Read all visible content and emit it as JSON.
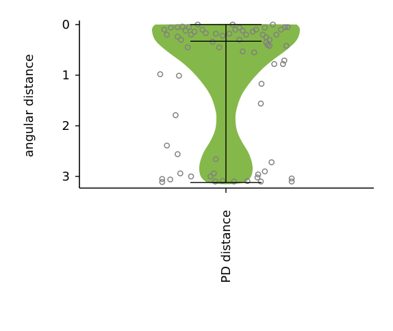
{
  "chart_data": {
    "type": "violin",
    "ylabel": "angular distance",
    "categories": [
      "PD distance"
    ],
    "y_inverted": true,
    "ylim": [
      3.23,
      -0.08
    ],
    "yticks": [
      0,
      1,
      2,
      3
    ],
    "ytick_labels": [
      "0",
      "1",
      "2",
      "3"
    ],
    "violin_color": "#85b84a",
    "point_color": "#808080",
    "error_color": "#000000",
    "summary": {
      "min": 0.0,
      "median": 0.33,
      "max": 3.12
    },
    "density_profile": [
      [
        0.0,
        0.96
      ],
      [
        0.1,
        1.0
      ],
      [
        0.3,
        0.96
      ],
      [
        0.5,
        0.82
      ],
      [
        0.8,
        0.55
      ],
      [
        1.1,
        0.35
      ],
      [
        1.4,
        0.21
      ],
      [
        1.7,
        0.14
      ],
      [
        1.9,
        0.13
      ],
      [
        2.1,
        0.15
      ],
      [
        2.3,
        0.21
      ],
      [
        2.55,
        0.31
      ],
      [
        2.8,
        0.36
      ],
      [
        3.0,
        0.34
      ],
      [
        3.12,
        0.26
      ]
    ],
    "points": [
      {
        "x": -0.92,
        "y": 0.1
      },
      {
        "x": -0.88,
        "y": 0.2
      },
      {
        "x": -0.82,
        "y": 0.06
      },
      {
        "x": -0.72,
        "y": 0.05
      },
      {
        "x": -0.72,
        "y": 0.24
      },
      {
        "x": -0.67,
        "y": 0.3
      },
      {
        "x": -0.65,
        "y": 0.04
      },
      {
        "x": -0.6,
        "y": 0.12
      },
      {
        "x": -0.57,
        "y": 0.45
      },
      {
        "x": -0.55,
        "y": 0.05
      },
      {
        "x": -0.52,
        "y": 0.2
      },
      {
        "x": -0.47,
        "y": 0.14
      },
      {
        "x": -0.42,
        "y": 0.0
      },
      {
        "x": -0.35,
        "y": 0.1
      },
      {
        "x": -0.3,
        "y": 0.17
      },
      {
        "x": -0.2,
        "y": 0.34
      },
      {
        "x": -0.15,
        "y": 0.18
      },
      {
        "x": -0.1,
        "y": 0.45
      },
      {
        "x": -0.05,
        "y": 0.22
      },
      {
        "x": 0.05,
        "y": 0.18
      },
      {
        "x": 0.1,
        "y": 0.0
      },
      {
        "x": 0.14,
        "y": 0.1
      },
      {
        "x": 0.2,
        "y": 0.06
      },
      {
        "x": 0.2,
        "y": 0.3
      },
      {
        "x": 0.25,
        "y": 0.12
      },
      {
        "x": 0.3,
        "y": 0.2
      },
      {
        "x": 0.25,
        "y": 0.53
      },
      {
        "x": 0.4,
        "y": 0.14
      },
      {
        "x": 0.42,
        "y": 0.55
      },
      {
        "x": 0.45,
        "y": 0.1
      },
      {
        "x": 0.55,
        "y": 0.2
      },
      {
        "x": 0.58,
        "y": 0.06
      },
      {
        "x": 0.6,
        "y": 0.35
      },
      {
        "x": 0.62,
        "y": 0.4
      },
      {
        "x": 0.65,
        "y": 0.3
      },
      {
        "x": 0.7,
        "y": 0.0
      },
      {
        "x": 0.75,
        "y": 0.2
      },
      {
        "x": 0.82,
        "y": 0.1
      },
      {
        "x": 0.88,
        "y": 0.05
      },
      {
        "x": 0.9,
        "y": 0.42
      },
      {
        "x": 0.92,
        "y": 0.05
      },
      {
        "x": 0.65,
        "y": 0.42
      },
      {
        "x": 0.6,
        "y": 0.25
      },
      {
        "x": -0.98,
        "y": 0.98
      },
      {
        "x": -0.7,
        "y": 1.01
      },
      {
        "x": 0.72,
        "y": 0.78
      },
      {
        "x": 0.87,
        "y": 0.71
      },
      {
        "x": 0.85,
        "y": 0.78
      },
      {
        "x": 0.53,
        "y": 1.17
      },
      {
        "x": 0.52,
        "y": 1.56
      },
      {
        "x": -0.75,
        "y": 1.79
      },
      {
        "x": -0.88,
        "y": 2.39
      },
      {
        "x": -0.72,
        "y": 2.56
      },
      {
        "x": -0.15,
        "y": 2.66
      },
      {
        "x": 0.68,
        "y": 2.72
      },
      {
        "x": 0.58,
        "y": 2.9
      },
      {
        "x": 0.48,
        "y": 2.96
      },
      {
        "x": -0.68,
        "y": 2.94
      },
      {
        "x": -0.52,
        "y": 3.0
      },
      {
        "x": -0.18,
        "y": 2.94
      },
      {
        "x": -0.23,
        "y": 3.0
      },
      {
        "x": -0.95,
        "y": 3.05
      },
      {
        "x": -0.83,
        "y": 3.06
      },
      {
        "x": -0.95,
        "y": 3.11
      },
      {
        "x": -0.16,
        "y": 3.1
      },
      {
        "x": -0.05,
        "y": 3.09
      },
      {
        "x": 0.12,
        "y": 3.1
      },
      {
        "x": 0.32,
        "y": 3.09
      },
      {
        "x": 0.47,
        "y": 3.02
      },
      {
        "x": 0.52,
        "y": 3.1
      },
      {
        "x": 0.98,
        "y": 3.04
      },
      {
        "x": 0.98,
        "y": 3.1
      }
    ]
  }
}
